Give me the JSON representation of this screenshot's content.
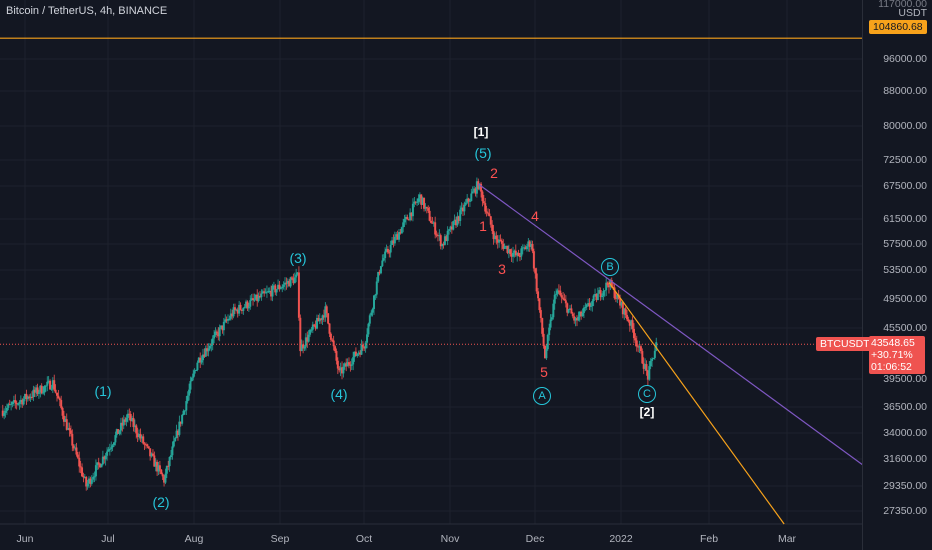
{
  "header": {
    "title": "Bitcoin / TetherUS, 4h, BINANCE"
  },
  "colors": {
    "background": "#131722",
    "up": "#26a69a",
    "down": "#ef5350",
    "orange": "#f7a21b",
    "purple": "#7e57c2",
    "teal": "#26c6da",
    "red": "#ff5252"
  },
  "price_axis": {
    "top_label": "USDT",
    "top_partial": "117000.00",
    "ticks": [
      "96000.00",
      "88000.00",
      "80000.00",
      "72500.00",
      "67500.00",
      "61500.00",
      "57500.00",
      "53500.00",
      "49500.00",
      "45500.00",
      "39500.00",
      "36500.00",
      "34000.00",
      "31600.00",
      "29350.00",
      "27350.00"
    ]
  },
  "level_label": "104860.68",
  "current": {
    "symbol": "BTCUSDT",
    "price": "43548.65",
    "change": "+30.71%",
    "countdown": "01:06:52"
  },
  "time_axis": [
    "Jun",
    "Jul",
    "Aug",
    "Sep",
    "Oct",
    "Nov",
    "Dec",
    "2022",
    "Feb",
    "Mar"
  ],
  "annotations": {
    "w1": "(1)",
    "w2": "(2)",
    "w3": "(3)",
    "w4": "(4)",
    "w5": "(5)",
    "top": "[1]",
    "bottom": "[2]",
    "r1": "1",
    "r2": "2",
    "r3": "3",
    "r4": "4",
    "r5": "5",
    "A": "A",
    "B": "B",
    "C": "C"
  },
  "chart_data": {
    "type": "candlestick",
    "title": "Bitcoin / TetherUS, 4h, BINANCE",
    "x_range": [
      "2021-05-22",
      "2022-03-28"
    ],
    "y_scale": "log",
    "y_range": [
      26000,
      117000
    ],
    "horizontal_level": 104860.68,
    "last_price": 43548.65,
    "swing_path": [
      {
        "date": "2021-05-23",
        "price": 36000
      },
      {
        "date": "2021-06-10",
        "price": 39000
      },
      {
        "date": "2021-06-22",
        "price": 29000
      },
      {
        "date": "2021-07-07",
        "price": 35500
      },
      {
        "date": "2021-07-20",
        "price": 29500
      },
      {
        "date": "2021-08-01",
        "price": 41500
      },
      {
        "date": "2021-08-14",
        "price": 47800
      },
      {
        "date": "2021-09-06",
        "price": 52800
      },
      {
        "date": "2021-09-07",
        "price": 43000
      },
      {
        "date": "2021-09-16",
        "price": 48000
      },
      {
        "date": "2021-09-21",
        "price": 40000
      },
      {
        "date": "2021-09-30",
        "price": 43500
      },
      {
        "date": "2021-10-06",
        "price": 55000
      },
      {
        "date": "2021-10-20",
        "price": 66500
      },
      {
        "date": "2021-10-28",
        "price": 58000
      },
      {
        "date": "2021-11-10",
        "price": 69000
      },
      {
        "date": "2021-11-16",
        "price": 59000
      },
      {
        "date": "2021-11-24",
        "price": 56000
      },
      {
        "date": "2021-11-29",
        "price": 58500
      },
      {
        "date": "2021-12-04",
        "price": 42000
      },
      {
        "date": "2021-12-08",
        "price": 51000
      },
      {
        "date": "2021-12-15",
        "price": 46500
      },
      {
        "date": "2021-12-27",
        "price": 52000
      },
      {
        "date": "2022-01-04",
        "price": 46000
      },
      {
        "date": "2022-01-10",
        "price": 39700
      },
      {
        "date": "2022-01-13",
        "price": 43548.65
      }
    ],
    "trendlines": [
      {
        "color": "purple",
        "from": {
          "date": "2021-11-10",
          "price": 69000
        },
        "to": {
          "date": "2022-03-30",
          "price": 30500
        }
      },
      {
        "color": "orange",
        "from": {
          "date": "2021-12-27",
          "price": 52000
        },
        "to": {
          "date": "2022-02-28",
          "price": 26000
        }
      }
    ]
  }
}
